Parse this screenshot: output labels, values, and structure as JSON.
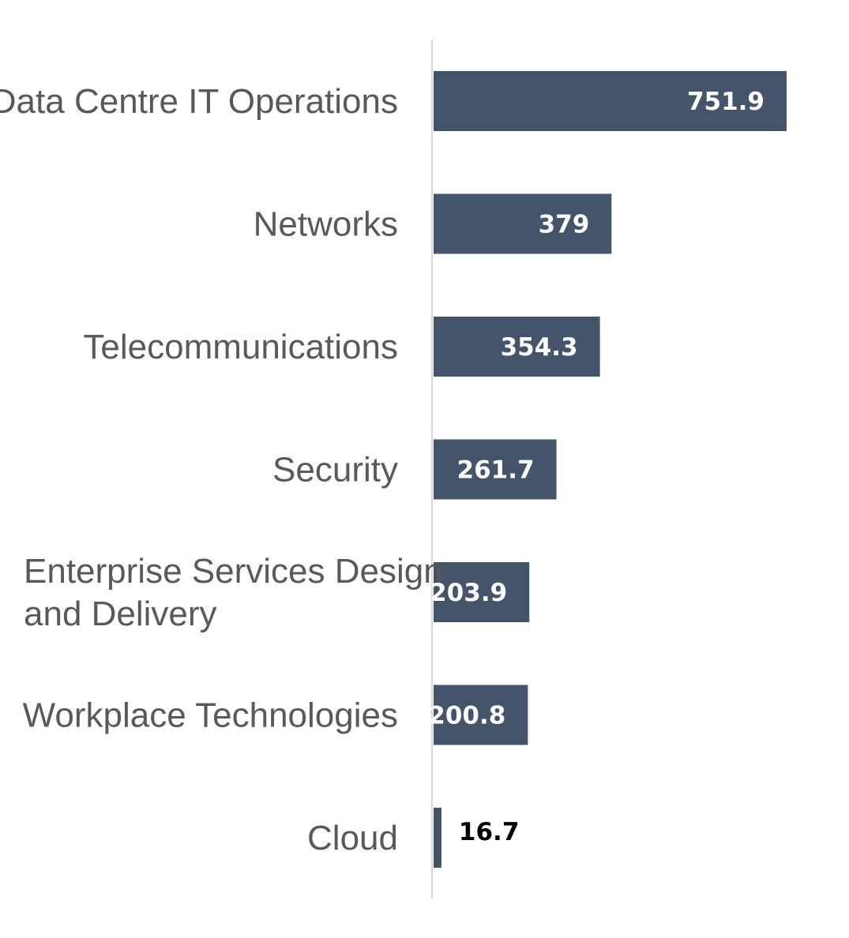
{
  "chart_data": {
    "type": "bar",
    "orientation": "horizontal",
    "categories": [
      [
        "Data Centre IT Operations"
      ],
      [
        "Networks"
      ],
      [
        "Telecommunications"
      ],
      [
        "Security"
      ],
      [
        "Enterprise Services Design",
        "and Delivery"
      ],
      [
        "Workplace Technologies"
      ],
      [
        "Cloud"
      ]
    ],
    "values": [
      751.9,
      379,
      354.3,
      261.7,
      203.9,
      200.8,
      16.7
    ],
    "value_labels": [
      "751.9",
      "379",
      "354.3",
      "261.7",
      "203.9",
      "200.8",
      "16.7"
    ],
    "title": "",
    "xlabel": "",
    "ylabel": "",
    "xlim": [
      0,
      800
    ],
    "grid": false,
    "legend": "none",
    "colors": {
      "bar": "#44546A",
      "axis": "#D9D9D9",
      "category_text": "#595959",
      "value_text_inside": "#FFFFFF",
      "value_text_outside": "#000000"
    }
  }
}
